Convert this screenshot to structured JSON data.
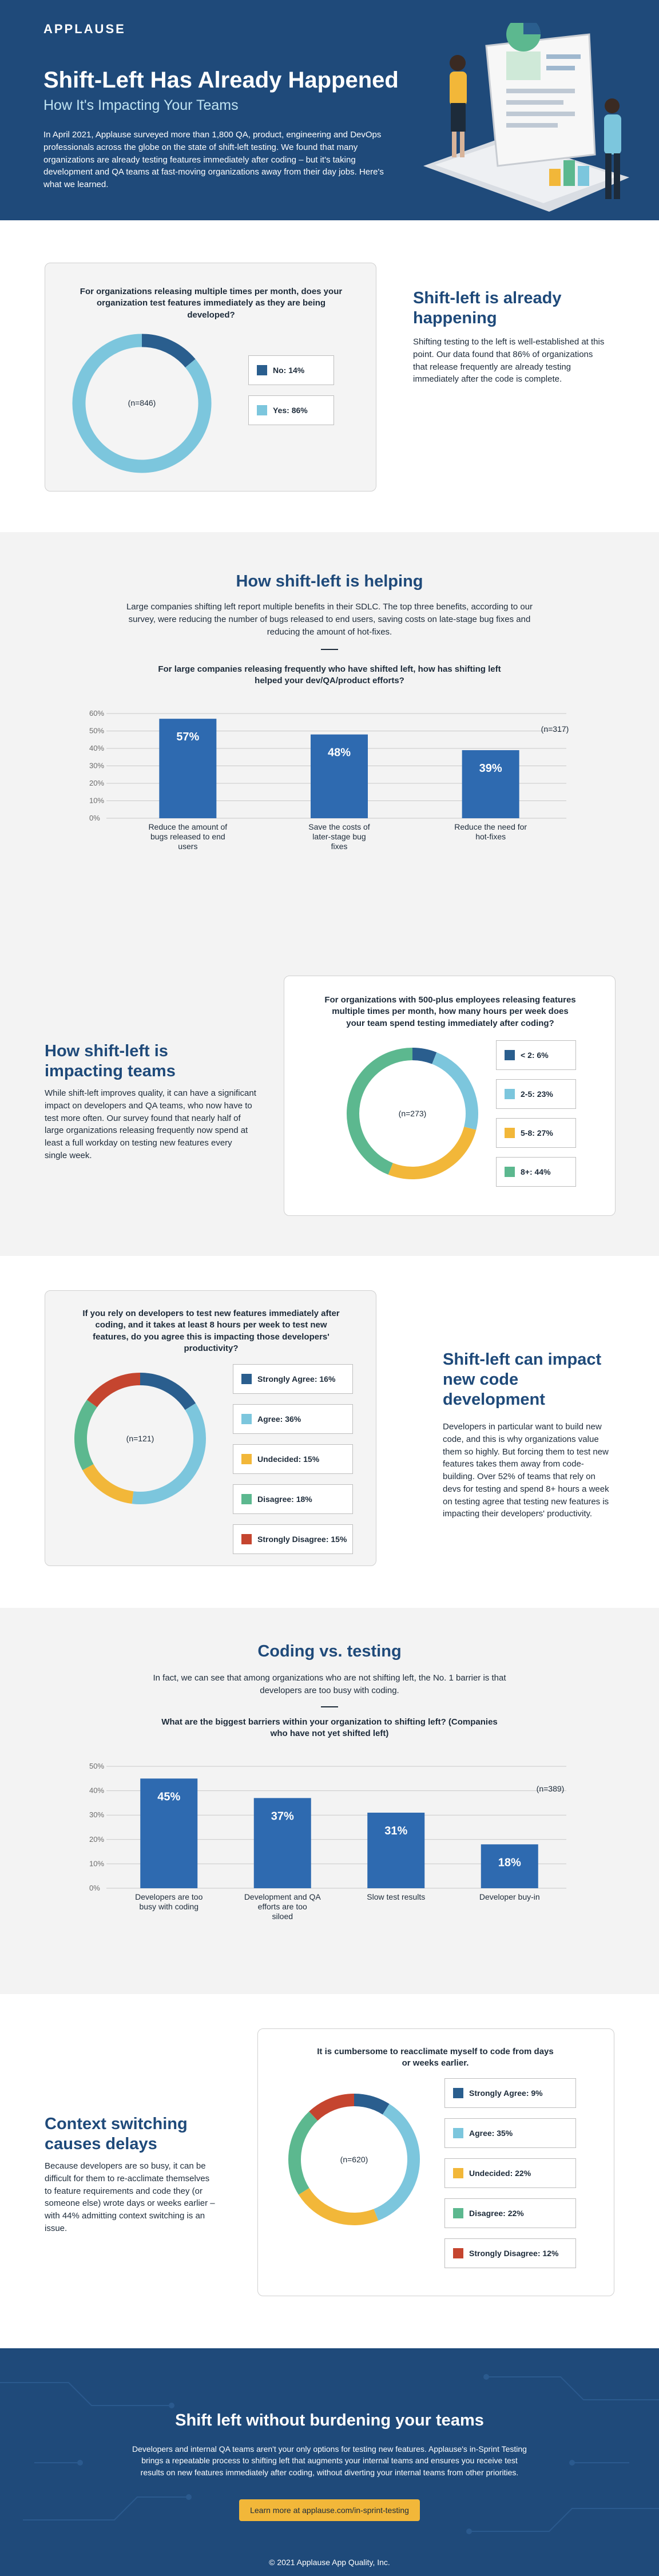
{
  "header": {
    "logo": "APPLAUSE",
    "title": "Shift-Left Has Already Happened",
    "subtitle": "How It's Impacting Your Teams",
    "intro": "In April 2021, Applause surveyed more than 1,800 QA, product, engineering and DevOps professionals across the globe on the state of shift-left testing. We found that many organizations are already testing features immediately after coding – but it's taking development and QA teams at fast-moving organizations away from their day jobs. Here's what we learned."
  },
  "sec1": {
    "heading": "Shift-left is already happening",
    "body": "Shifting testing to the left is well-established at this point. Our data found that 86% of organizations that release frequently are already testing immediately after the code is complete."
  },
  "sec2": {
    "heading": "How shift-left is helping",
    "body": "Large companies shifting left report multiple benefits in their SDLC. The top three benefits, according to our survey, were reducing the number of bugs released to end users, saving costs on late-stage bug fixes and reducing the amount of hot-fixes."
  },
  "sec3": {
    "heading": "How shift-left is impacting teams",
    "body": "While shift-left improves quality, it can have a significant impact on developers and QA teams, who now have to test more often. Our survey found that nearly half of large organizations releasing frequently now spend at least a full workday on testing new features every single week."
  },
  "sec4": {
    "heading": "Shift-left can impact new code development",
    "body": "Developers in particular want to build new code, and this is why organizations value them so highly. But forcing them to test new features takes them away from code-building. Over 52% of teams that rely on devs for testing and spend 8+ hours a week on testing agree that testing new features is impacting their developers' productivity."
  },
  "sec5": {
    "heading": "Coding vs. testing",
    "body": "In fact, we can see that among organizations who are not shifting left, the No. 1 barrier is that developers are too busy with coding."
  },
  "sec6": {
    "heading": "Context switching causes delays",
    "body": "Because developers are so busy, it can be difficult for them to re-acclimate themselves to feature requirements and code they (or someone else) wrote days or weeks earlier – with 44% admitting context switching is an issue."
  },
  "footer": {
    "heading": "Shift left without burdening your teams",
    "body": "Developers and internal QA teams aren't your only options for testing new features. Applause's in-Sprint Testing brings a repeatable process to shifting left that augments your internal teams and ensures you receive test results on new features immediately after coding, without diverting your internal teams from other priorities.",
    "button": "Learn more at applause.com/in-sprint-testing",
    "copyright": "© 2021 Applause App Quality, Inc."
  },
  "colors": {
    "navy": "#1f4a7a",
    "dark_blue": "#2a5e8e",
    "light_blue": "#7cc6dd",
    "bar_blue": "#2e6ab0",
    "yellow": "#f2b739",
    "green": "#5cb88f",
    "red": "#c5452f"
  },
  "chart_data": [
    {
      "type": "pie",
      "title": "For organizations releasing multiple times per month, does your organization test features immediately as they are being developed?",
      "n_label": "(n=846)",
      "slices": [
        {
          "label": "No: 14%",
          "value": 14,
          "color": "#2a5e8e"
        },
        {
          "label": "Yes: 86%",
          "value": 86,
          "color": "#7cc6dd"
        }
      ]
    },
    {
      "type": "bar",
      "title": "For large companies releasing frequently who have shifted left, how has shifting left helped your dev/QA/product efforts?",
      "n_label": "(n=317)",
      "categories": [
        "Reduce the amount of bugs released to end users",
        "Save the costs of later-stage bug fixes",
        "Reduce the need for hot-fixes"
      ],
      "values": [
        57,
        48,
        39
      ],
      "value_labels": [
        "57%",
        "48%",
        "39%"
      ],
      "yticks": [
        "0%",
        "10%",
        "20%",
        "30%",
        "40%",
        "50%",
        "60%"
      ],
      "ylim": [
        0,
        60
      ],
      "color": "#2e6ab0"
    },
    {
      "type": "pie",
      "title": "For organizations with 500-plus employees releasing features multiple times per month, how many hours per week does your team spend testing immediately after coding?",
      "n_label": "(n=273)",
      "slices": [
        {
          "label": "< 2: 6%",
          "value": 6,
          "color": "#2a5e8e"
        },
        {
          "label": "2-5: 23%",
          "value": 23,
          "color": "#7cc6dd"
        },
        {
          "label": "5-8: 27%",
          "value": 27,
          "color": "#f2b739"
        },
        {
          "label": "8+: 44%",
          "value": 44,
          "color": "#5cb88f"
        }
      ]
    },
    {
      "type": "pie",
      "title": "If you rely on developers to test new features immediately after coding, and it takes at least 8 hours per week to test new features, do you agree this is impacting those developers' productivity?",
      "n_label": "(n=121)",
      "slices": [
        {
          "label": "Strongly Agree: 16%",
          "value": 16,
          "color": "#2a5e8e"
        },
        {
          "label": "Agree: 36%",
          "value": 36,
          "color": "#7cc6dd"
        },
        {
          "label": "Undecided: 15%",
          "value": 15,
          "color": "#f2b739"
        },
        {
          "label": "Disagree: 18%",
          "value": 18,
          "color": "#5cb88f"
        },
        {
          "label": "Strongly Disagree: 15%",
          "value": 15,
          "color": "#c5452f"
        }
      ]
    },
    {
      "type": "bar",
      "title": "What are the biggest barriers within your organization to shifting left? (Companies who have not yet shifted left)",
      "n_label": "(n=389)",
      "categories": [
        "Developers are too busy with coding",
        "Development and QA efforts are too siloed",
        "Slow test results",
        "Developer buy-in"
      ],
      "values": [
        45,
        37,
        31,
        18
      ],
      "value_labels": [
        "45%",
        "37%",
        "31%",
        "18%"
      ],
      "yticks": [
        "0%",
        "10%",
        "20%",
        "30%",
        "40%",
        "50%"
      ],
      "ylim": [
        0,
        50
      ],
      "color": "#2e6ab0"
    },
    {
      "type": "pie",
      "title": "It is cumbersome to reacclimate myself to code from days or weeks earlier.",
      "n_label": "(n=620)",
      "slices": [
        {
          "label": "Strongly Agree: 9%",
          "value": 9,
          "color": "#2a5e8e"
        },
        {
          "label": "Agree: 35%",
          "value": 35,
          "color": "#7cc6dd"
        },
        {
          "label": "Undecided: 22%",
          "value": 22,
          "color": "#f2b739"
        },
        {
          "label": "Disagree: 22%",
          "value": 22,
          "color": "#5cb88f"
        },
        {
          "label": "Strongly Disagree: 12%",
          "value": 12,
          "color": "#c5452f"
        }
      ]
    }
  ]
}
